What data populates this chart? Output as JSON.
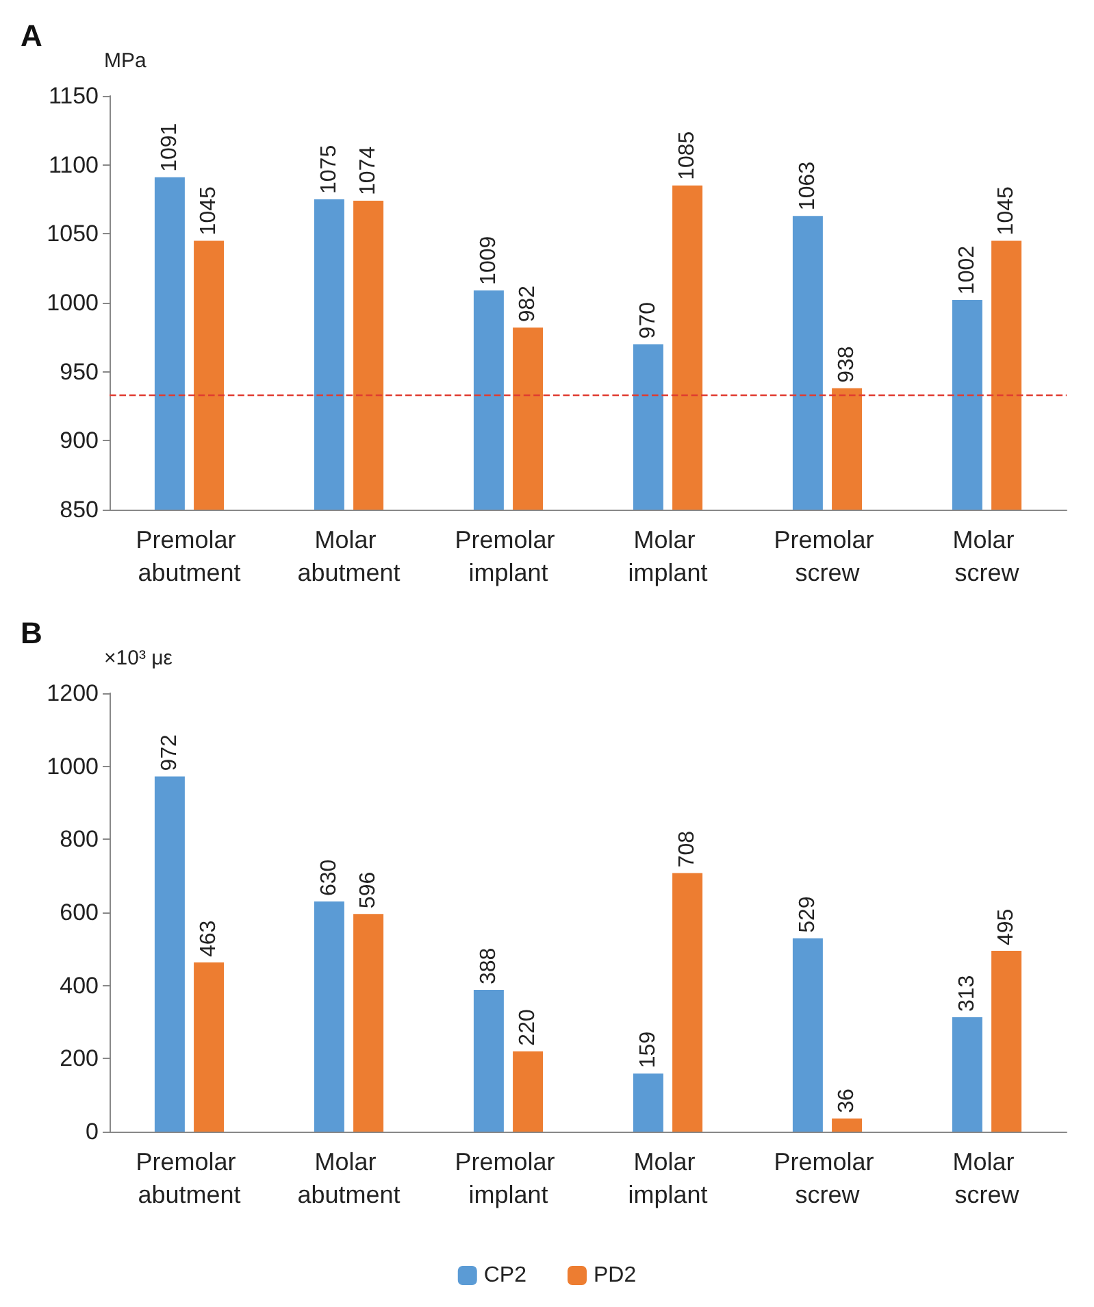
{
  "chart_data": [
    {
      "type": "bar",
      "title": "A",
      "ylabel": "MPa",
      "categories": [
        "Premolar abutment",
        "Molar abutment",
        "Premolar implant",
        "Molar implant",
        "Premolar screw",
        "Molar screw"
      ],
      "series": [
        {
          "color": "#5b9bd5",
          "values": [
            1091,
            1075,
            1009,
            970,
            1063,
            1002
          ]
        },
        {
          "color": "#ed7d31",
          "values": [
            1045,
            1074,
            982,
            1085,
            938,
            1045
          ]
        }
      ],
      "ylim": [
        850,
        1150
      ],
      "yticks": [
        850,
        900,
        950,
        1000,
        1050,
        1100,
        1150
      ],
      "data_labels": true,
      "grid": false,
      "legend": false,
      "ref_lines": [
        {
          "axis": "y",
          "value": 933,
          "color": "#e03c31",
          "line_style": "dashed"
        }
      ]
    },
    {
      "type": "bar",
      "title": "B",
      "ylabel": "×10³ με",
      "categories": [
        "Premolar abutment",
        "Molar abutment",
        "Premolar implant",
        "Molar implant",
        "Premolar screw",
        "Molar screw"
      ],
      "series": [
        {
          "name": "CP2",
          "color": "#5b9bd5",
          "values": [
            972,
            630,
            388,
            159,
            529,
            313
          ]
        },
        {
          "name": "PD2",
          "color": "#ed7d31",
          "values": [
            463,
            596,
            220,
            708,
            36,
            495
          ]
        }
      ],
      "ylim": [
        0,
        1200
      ],
      "yticks": [
        0,
        200,
        400,
        600,
        800,
        1000,
        1200
      ],
      "data_labels": true,
      "grid": false,
      "legend": "bottom"
    }
  ]
}
